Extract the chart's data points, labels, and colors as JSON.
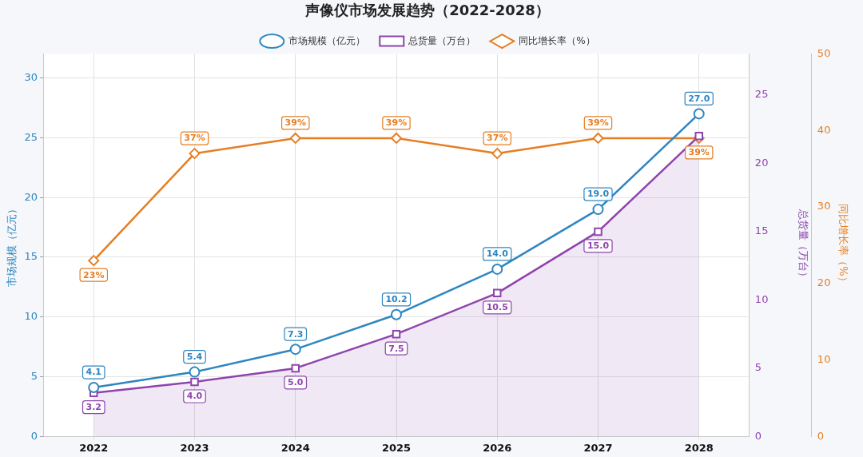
{
  "chart_data": {
    "type": "line",
    "title": "声像仪市场发展趋势（2022-2028）",
    "categories": [
      "2022",
      "2023",
      "2024",
      "2025",
      "2026",
      "2027",
      "2028"
    ],
    "ylabel": "市场规模（亿元）",
    "y2label": "总货量（万台）",
    "y3label": "同比增长率（%）",
    "ylim": [
      0,
      32
    ],
    "yticks": [
      0,
      5,
      10,
      15,
      20,
      25,
      30
    ],
    "y2lim": [
      0,
      28
    ],
    "y2ticks": [
      0,
      5,
      10,
      15,
      20,
      25
    ],
    "y3lim": [
      0,
      50
    ],
    "y3ticks": [
      0,
      10,
      20,
      30,
      40,
      50
    ],
    "grid": true,
    "legend": "top",
    "series": [
      {
        "name": "市场规模（亿元）",
        "color": "#2e86c1",
        "marker": "circle",
        "axis": "y",
        "values": [
          4.1,
          5.4,
          7.3,
          10.2,
          14.0,
          19.0,
          27.0
        ],
        "value_labels": [
          "4.1",
          "5.4",
          "7.3",
          "10.2",
          "14.0",
          "19.0",
          "27.0"
        ]
      },
      {
        "name": "总货量（万台）",
        "type": "area",
        "color": "#8e44ad",
        "marker": "square",
        "axis": "y2",
        "values": [
          3.2,
          4.0,
          5.0,
          7.5,
          10.5,
          15.0,
          22.0
        ],
        "value_labels": [
          "3.2",
          "4.0",
          "5.0",
          "7.5",
          "10.5",
          "15.0",
          null
        ]
      },
      {
        "name": "同比增长率（%）",
        "color": "#e67e22",
        "marker": "diamond",
        "axis": "y3",
        "values": [
          23,
          37,
          39,
          39,
          37,
          39,
          39
        ],
        "value_labels": [
          "23%",
          "37%",
          "39%",
          "39%",
          "37%",
          "39%",
          "39%"
        ]
      }
    ]
  }
}
